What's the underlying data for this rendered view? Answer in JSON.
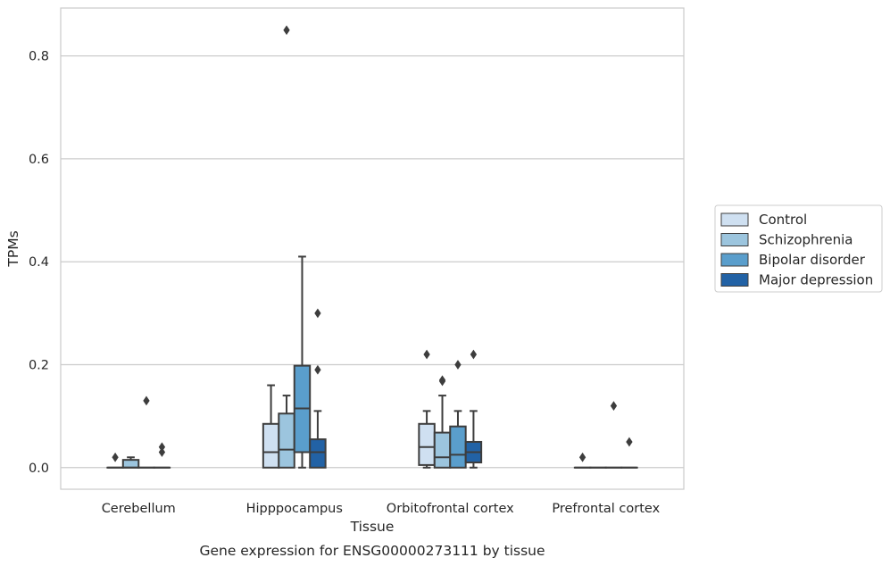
{
  "chart_data": {
    "type": "boxplot",
    "title": "",
    "caption": "Gene expression for ENSG00000273111 by tissue",
    "xlabel": "Tissue",
    "ylabel": "TPMs",
    "ylim": [
      -0.042,
      0.893
    ],
    "yticks": [
      0.0,
      0.2,
      0.4,
      0.6,
      0.8
    ],
    "ytick_labels": [
      "0.0",
      "0.2",
      "0.4",
      "0.6",
      "0.8"
    ],
    "grid": "horizontal",
    "legend_position": "right",
    "categories": [
      "Cerebellum",
      "Hipppocampus",
      "Orbitofrontal cortex",
      "Prefrontal cortex"
    ],
    "series": [
      {
        "name": "Control",
        "color": "#cfe0f1",
        "boxes": [
          {
            "q1": 0,
            "median": 0,
            "q3": 0,
            "whislo": 0,
            "whishi": 0,
            "fliers": [
              0.02
            ]
          },
          {
            "q1": 0,
            "median": 0.03,
            "q3": 0.085,
            "whislo": 0,
            "whishi": 0.16,
            "fliers": []
          },
          {
            "q1": 0.005,
            "median": 0.04,
            "q3": 0.085,
            "whislo": 0,
            "whishi": 0.11,
            "fliers": [
              0.22
            ]
          },
          {
            "q1": 0,
            "median": 0,
            "q3": 0,
            "whislo": 0,
            "whishi": 0,
            "fliers": [
              0.02
            ]
          }
        ]
      },
      {
        "name": "Schizophrenia",
        "color": "#9cc5de",
        "boxes": [
          {
            "q1": 0,
            "median": 0,
            "q3": 0.015,
            "whislo": 0,
            "whishi": 0.02,
            "fliers": []
          },
          {
            "q1": 0,
            "median": 0.035,
            "q3": 0.105,
            "whislo": 0,
            "whishi": 0.14,
            "fliers": [
              0.85
            ]
          },
          {
            "q1": 0,
            "median": 0.02,
            "q3": 0.068,
            "whislo": 0,
            "whishi": 0.14,
            "fliers": [
              0.17,
              0.168
            ]
          },
          {
            "q1": 0,
            "median": 0,
            "q3": 0,
            "whislo": 0,
            "whishi": 0,
            "fliers": []
          }
        ]
      },
      {
        "name": "Bipolar disorder",
        "color": "#5a9ecc",
        "boxes": [
          {
            "q1": 0,
            "median": 0,
            "q3": 0,
            "whislo": 0,
            "whishi": 0,
            "fliers": [
              0.13
            ]
          },
          {
            "q1": 0.03,
            "median": 0.115,
            "q3": 0.198,
            "whislo": 0,
            "whishi": 0.41,
            "fliers": []
          },
          {
            "q1": 0,
            "median": 0.025,
            "q3": 0.08,
            "whislo": 0,
            "whishi": 0.11,
            "fliers": [
              0.2
            ]
          },
          {
            "q1": 0,
            "median": 0,
            "q3": 0,
            "whislo": 0,
            "whishi": 0,
            "fliers": [
              0.12
            ]
          }
        ]
      },
      {
        "name": "Major depression",
        "color": "#2262a5",
        "boxes": [
          {
            "q1": 0,
            "median": 0,
            "q3": 0,
            "whislo": 0,
            "whishi": 0,
            "fliers": [
              0.04,
              0.03
            ]
          },
          {
            "q1": 0,
            "median": 0.03,
            "q3": 0.055,
            "whislo": 0,
            "whishi": 0.11,
            "fliers": [
              0.3,
              0.19
            ]
          },
          {
            "q1": 0.01,
            "median": 0.03,
            "q3": 0.05,
            "whislo": 0,
            "whishi": 0.11,
            "fliers": [
              0.22
            ]
          },
          {
            "q1": 0,
            "median": 0,
            "q3": 0,
            "whislo": 0,
            "whishi": 0,
            "fliers": [
              0.05
            ]
          }
        ]
      }
    ]
  }
}
